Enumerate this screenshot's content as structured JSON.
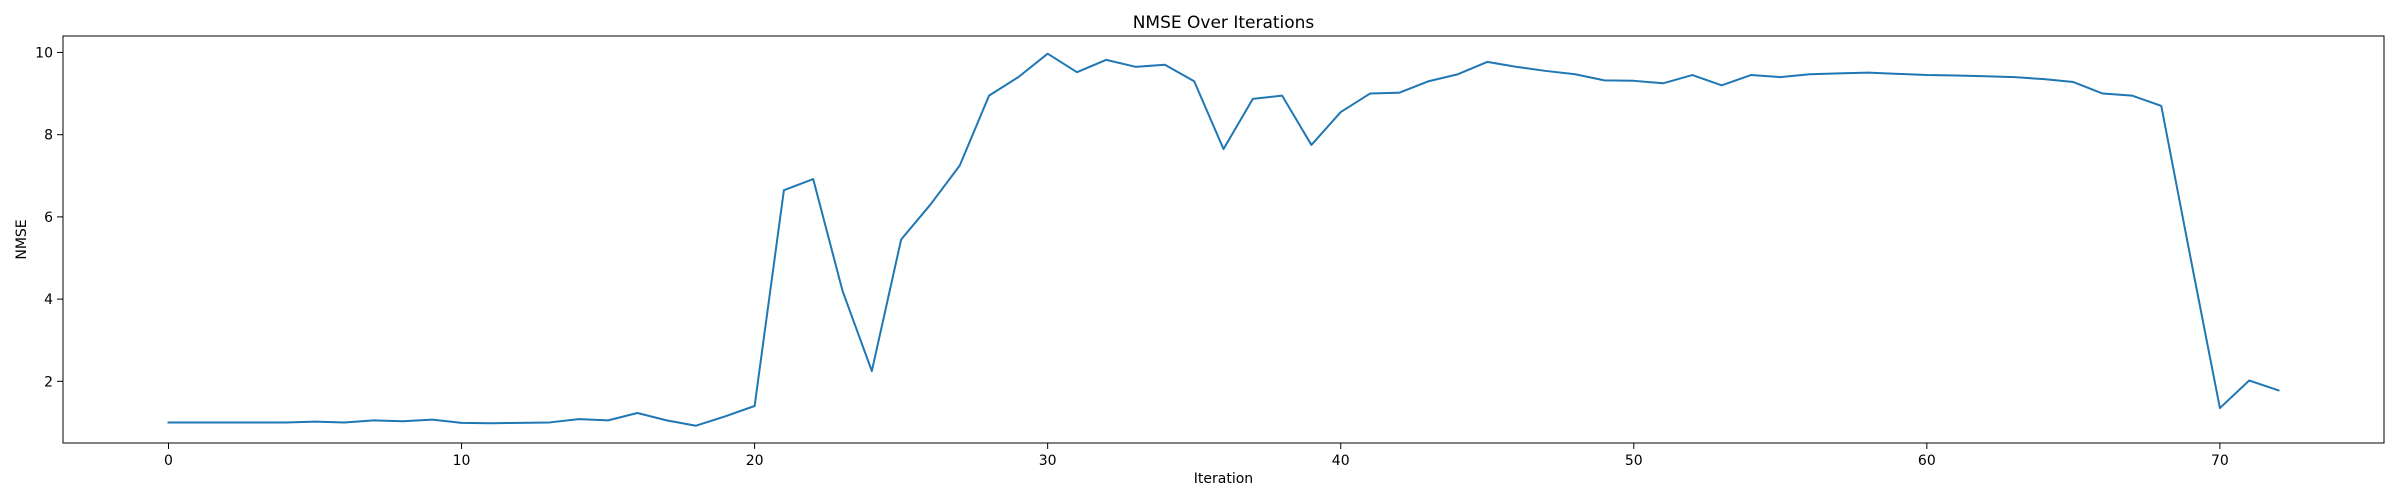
{
  "chart_data": {
    "type": "line",
    "title": "NMSE Over Iterations",
    "xlabel": "Iteration",
    "ylabel": "NMSE",
    "xlim": [
      -3.6,
      75.6
    ],
    "ylim": [
      0.5,
      10.4
    ],
    "xticks": [
      0,
      10,
      20,
      30,
      40,
      50,
      60,
      70
    ],
    "yticks": [
      2,
      4,
      6,
      8,
      10
    ],
    "grid": false,
    "line_color": "#1f77b4",
    "series": [
      {
        "x": [
          0,
          1,
          2,
          3,
          4,
          5,
          6,
          7,
          8,
          9,
          10,
          11,
          12,
          13,
          14,
          15,
          16,
          17,
          18,
          19,
          20,
          21,
          22,
          23,
          24,
          25,
          26,
          27,
          28,
          29,
          30,
          31,
          32,
          33,
          34,
          35,
          36,
          37,
          38,
          39,
          40,
          41,
          42,
          43,
          44,
          45,
          46,
          47,
          48,
          49,
          50,
          51,
          52,
          53,
          54,
          55,
          56,
          57,
          58,
          59,
          60,
          61,
          62,
          63,
          64,
          65,
          66,
          67,
          68,
          69,
          70,
          71,
          72
        ],
        "y": [
          1.0,
          1.0,
          1.0,
          1.0,
          1.0,
          1.02,
          1.0,
          1.05,
          1.03,
          1.07,
          0.99,
          0.98,
          0.99,
          1.0,
          1.08,
          1.05,
          1.23,
          1.05,
          0.92,
          1.15,
          1.4,
          6.65,
          6.92,
          4.2,
          2.25,
          5.45,
          6.3,
          7.25,
          8.95,
          9.4,
          9.97,
          9.52,
          9.82,
          9.65,
          9.7,
          9.3,
          7.65,
          8.87,
          8.95,
          7.75,
          8.55,
          9.0,
          9.02,
          9.3,
          9.47,
          9.77,
          9.65,
          9.55,
          9.47,
          9.32,
          9.31,
          9.25,
          9.45,
          9.2,
          9.45,
          9.4,
          9.47,
          9.49,
          9.51,
          9.48,
          9.45,
          9.44,
          9.42,
          9.4,
          9.35,
          9.28,
          9.0,
          8.95,
          8.7,
          5.0,
          1.35,
          2.02,
          1.78
        ]
      }
    ]
  }
}
